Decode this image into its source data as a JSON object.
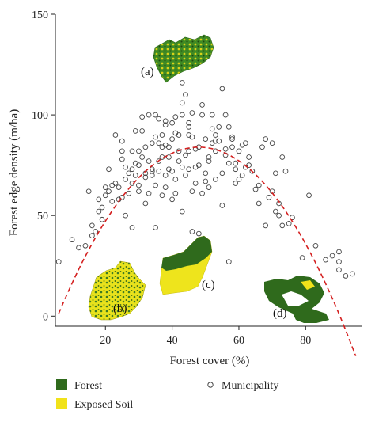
{
  "chart_data": {
    "type": "scatter",
    "xlabel": "Forest cover (%)",
    "ylabel": "Forest edge density (m/ha)",
    "xlim": [
      5,
      97
    ],
    "ylim": [
      -5,
      150
    ],
    "x_ticks": [
      "20",
      "40",
      "60",
      "80"
    ],
    "x_tick_values": [
      20,
      40,
      60,
      80
    ],
    "y_ticks": [
      "0",
      "50",
      "100",
      "150"
    ],
    "y_tick_values": [
      0,
      50,
      100,
      150
    ],
    "grid": false,
    "series": [
      {
        "name": "Municipality",
        "marker": "open-circle",
        "points": [
          [
            6,
            27
          ],
          [
            10,
            38
          ],
          [
            12,
            34
          ],
          [
            14,
            35
          ],
          [
            15,
            62
          ],
          [
            16,
            45
          ],
          [
            16,
            40
          ],
          [
            17,
            42
          ],
          [
            18,
            52
          ],
          [
            18,
            58
          ],
          [
            19,
            48
          ],
          [
            19,
            54
          ],
          [
            20,
            64
          ],
          [
            20,
            60
          ],
          [
            21,
            73
          ],
          [
            21,
            62
          ],
          [
            22,
            57
          ],
          [
            22,
            65
          ],
          [
            23,
            66
          ],
          [
            23,
            90
          ],
          [
            24,
            64
          ],
          [
            24,
            58
          ],
          [
            25,
            59
          ],
          [
            25,
            82
          ],
          [
            25,
            87
          ],
          [
            25,
            78
          ],
          [
            26,
            74
          ],
          [
            26,
            50
          ],
          [
            26,
            68
          ],
          [
            27,
            61
          ],
          [
            27,
            71
          ],
          [
            28,
            82
          ],
          [
            28,
            73
          ],
          [
            28,
            66
          ],
          [
            28,
            44
          ],
          [
            29,
            70
          ],
          [
            29,
            92
          ],
          [
            29,
            76
          ],
          [
            30,
            75
          ],
          [
            30,
            65
          ],
          [
            30,
            62
          ],
          [
            30,
            82
          ],
          [
            31,
            79
          ],
          [
            31,
            92
          ],
          [
            31,
            99
          ],
          [
            32,
            56
          ],
          [
            32,
            69
          ],
          [
            32,
            84
          ],
          [
            32,
            71
          ],
          [
            33,
            77
          ],
          [
            33,
            61
          ],
          [
            33,
            100
          ],
          [
            34,
            73
          ],
          [
            34,
            72
          ],
          [
            34,
            86
          ],
          [
            34,
            70
          ],
          [
            35,
            100
          ],
          [
            35,
            89
          ],
          [
            35,
            65
          ],
          [
            35,
            44
          ],
          [
            36,
            98
          ],
          [
            36,
            86
          ],
          [
            36,
            72
          ],
          [
            36,
            77
          ],
          [
            37,
            84
          ],
          [
            37,
            90
          ],
          [
            37,
            79
          ],
          [
            37,
            60
          ],
          [
            38,
            95
          ],
          [
            38,
            97
          ],
          [
            38,
            85
          ],
          [
            38,
            70
          ],
          [
            38,
            64
          ],
          [
            39,
            73
          ],
          [
            39,
            79
          ],
          [
            39,
            84
          ],
          [
            40,
            88
          ],
          [
            40,
            72
          ],
          [
            40,
            58
          ],
          [
            40,
            96
          ],
          [
            41,
            91
          ],
          [
            41,
            99
          ],
          [
            41,
            68
          ],
          [
            41,
            61
          ],
          [
            42,
            90
          ],
          [
            42,
            82
          ],
          [
            42,
            77
          ],
          [
            43,
            106
          ],
          [
            43,
            116
          ],
          [
            43,
            74
          ],
          [
            43,
            52
          ],
          [
            43,
            100
          ],
          [
            44,
            110
          ],
          [
            44,
            80
          ],
          [
            44,
            70
          ],
          [
            45,
            94
          ],
          [
            45,
            90
          ],
          [
            45,
            82
          ],
          [
            45,
            73
          ],
          [
            45,
            96
          ],
          [
            46,
            101
          ],
          [
            46,
            89
          ],
          [
            46,
            42
          ],
          [
            46,
            62
          ],
          [
            47,
            83
          ],
          [
            47,
            74
          ],
          [
            47,
            66
          ],
          [
            48,
            75
          ],
          [
            48,
            41
          ],
          [
            48,
            84
          ],
          [
            49,
            105
          ],
          [
            49,
            100
          ],
          [
            49,
            61
          ],
          [
            50,
            88
          ],
          [
            50,
            67
          ],
          [
            50,
            71
          ],
          [
            51,
            79
          ],
          [
            51,
            77
          ],
          [
            51,
            64
          ],
          [
            52,
            86
          ],
          [
            52,
            93
          ],
          [
            52,
            100
          ],
          [
            53,
            90
          ],
          [
            53,
            87
          ],
          [
            53,
            82
          ],
          [
            53,
            68
          ],
          [
            54,
            94
          ],
          [
            54,
            87
          ],
          [
            55,
            71
          ],
          [
            55,
            113
          ],
          [
            55,
            55
          ],
          [
            56,
            100
          ],
          [
            56,
            83
          ],
          [
            56,
            80
          ],
          [
            57,
            94
          ],
          [
            57,
            76
          ],
          [
            57,
            27
          ],
          [
            58,
            89
          ],
          [
            58,
            88
          ],
          [
            58,
            84
          ],
          [
            59,
            76
          ],
          [
            59,
            73
          ],
          [
            59,
            66
          ],
          [
            60,
            68
          ],
          [
            60,
            82
          ],
          [
            61,
            85
          ],
          [
            61,
            70
          ],
          [
            62,
            86
          ],
          [
            62,
            74
          ],
          [
            63,
            79
          ],
          [
            63,
            75
          ],
          [
            64,
            72
          ],
          [
            65,
            63
          ],
          [
            66,
            65
          ],
          [
            66,
            56
          ],
          [
            67,
            84
          ],
          [
            68,
            88
          ],
          [
            68,
            45
          ],
          [
            69,
            59
          ],
          [
            70,
            62
          ],
          [
            70,
            86
          ],
          [
            71,
            52
          ],
          [
            71,
            71
          ],
          [
            72,
            56
          ],
          [
            72,
            50
          ],
          [
            73,
            79
          ],
          [
            73,
            45
          ],
          [
            74,
            72
          ],
          [
            75,
            46
          ],
          [
            76,
            49
          ],
          [
            79,
            29
          ],
          [
            81,
            60
          ],
          [
            83,
            35
          ],
          [
            86,
            28
          ],
          [
            88,
            30
          ],
          [
            90,
            32
          ],
          [
            90,
            27
          ],
          [
            90,
            23
          ],
          [
            92,
            20
          ],
          [
            94,
            21
          ]
        ]
      }
    ],
    "fit": {
      "style": "dashed",
      "color": "#d42020",
      "coefficients": [
        -0.0469,
        4.5,
        -24.0
      ]
    },
    "insets": [
      {
        "label": "(a)",
        "colors": [
          "#2f6a1c",
          "#f1e21a"
        ]
      },
      {
        "label": "(b)",
        "colors": [
          "#2f6a1c",
          "#f1e21a"
        ]
      },
      {
        "label": "(c)",
        "colors": [
          "#2f6a1c",
          "#f1e21a"
        ]
      },
      {
        "label": "(d)",
        "colors": [
          "#2f6a1c",
          "#f1e21a",
          "#ffffff"
        ]
      }
    ],
    "legend": {
      "placement": "bottom",
      "entries": [
        {
          "label": "Forest",
          "color": "#2f6a1c",
          "marker": "square"
        },
        {
          "label": "Exposed Soil",
          "color": "#f1e21a",
          "marker": "square"
        },
        {
          "label": "Municipality",
          "color": "#444444",
          "marker": "open-circle"
        }
      ]
    }
  }
}
